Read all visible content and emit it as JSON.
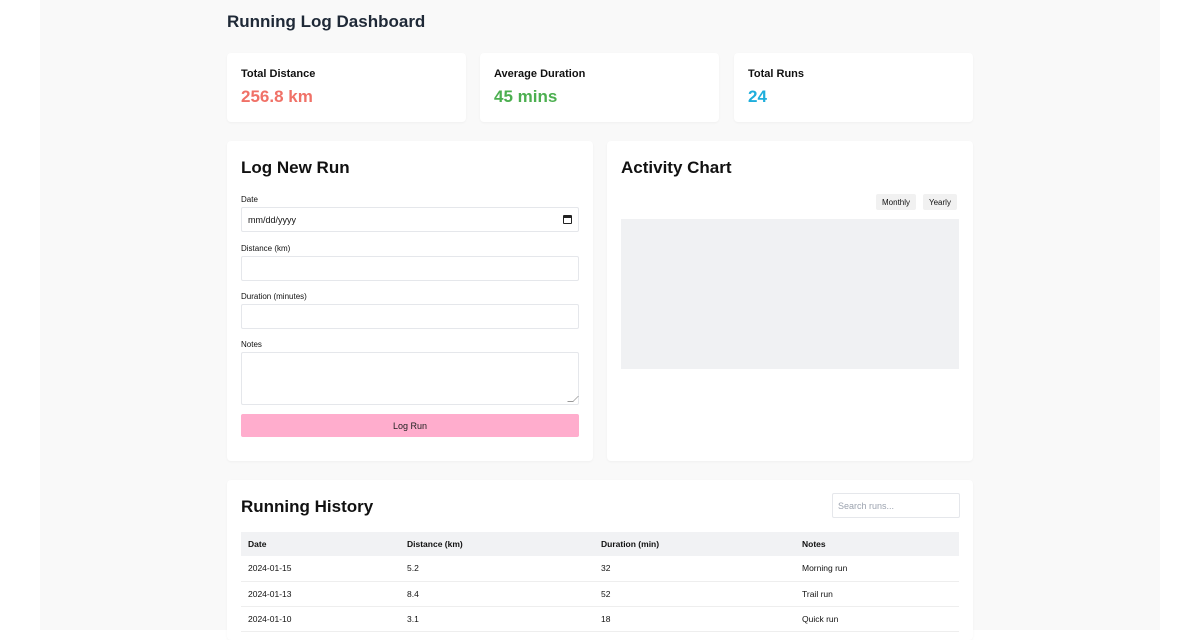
{
  "page": {
    "title": "Running Log Dashboard"
  },
  "stats": [
    {
      "label": "Total Distance",
      "value": "256.8 km",
      "color": "#f07167"
    },
    {
      "label": "Average Duration",
      "value": "45 mins",
      "color": "#4caf50"
    },
    {
      "label": "Total Runs",
      "value": "24",
      "color": "#1eaedc"
    }
  ],
  "form": {
    "title": "Log New Run",
    "date_label": "Date",
    "date_placeholder": "mm/dd/yyyy",
    "distance_label": "Distance (km)",
    "duration_label": "Duration (minutes)",
    "notes_label": "Notes",
    "submit_label": "Log Run",
    "submit_color": "#ffadcd"
  },
  "chart": {
    "title": "Activity Chart",
    "monthly_label": "Monthly",
    "yearly_label": "Yearly"
  },
  "history": {
    "title": "Running History",
    "search_placeholder": "Search runs...",
    "columns": [
      "Date",
      "Distance (km)",
      "Duration (min)",
      "Notes"
    ],
    "rows": [
      [
        "2024-01-15",
        "5.2",
        "32",
        "Morning run"
      ],
      [
        "2024-01-13",
        "8.4",
        "52",
        "Trail run"
      ],
      [
        "2024-01-10",
        "3.1",
        "18",
        "Quick run"
      ]
    ]
  }
}
